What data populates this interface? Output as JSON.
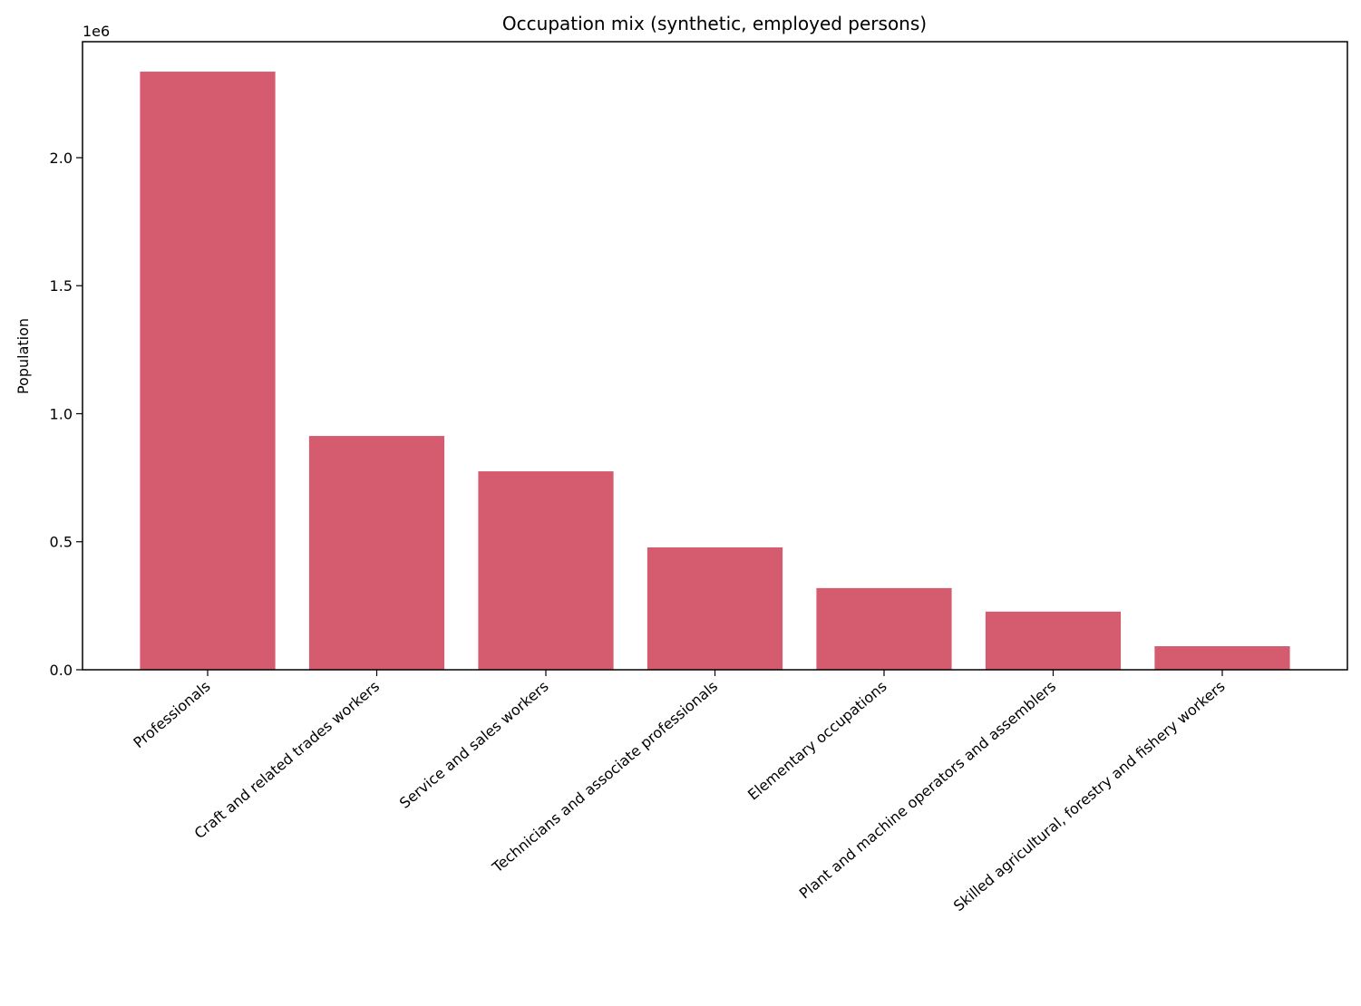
{
  "chart_data": {
    "type": "bar",
    "title": "Occupation mix (synthetic, employed persons)",
    "xlabel": "",
    "ylabel": "Population",
    "y_offset_label": "1e6",
    "categories": [
      "Professionals",
      "Craft and related trades workers",
      "Service and sales workers",
      "Technicians and associate professionals",
      "Elementary occupations",
      "Plant and machine operators and assemblers",
      "Skilled agricultural, forestry and fishery workers"
    ],
    "values": [
      2336000,
      913000,
      775000,
      478000,
      319000,
      227000,
      92000
    ],
    "ylim": [
      0,
      2453000
    ],
    "yticks": [
      0,
      500000,
      1000000,
      1500000,
      2000000
    ],
    "ytick_labels": [
      "0.0",
      "0.5",
      "1.0",
      "1.5",
      "2.0"
    ],
    "bar_color": "#d45c6e",
    "grid": false,
    "xtick_rotation": 40
  }
}
